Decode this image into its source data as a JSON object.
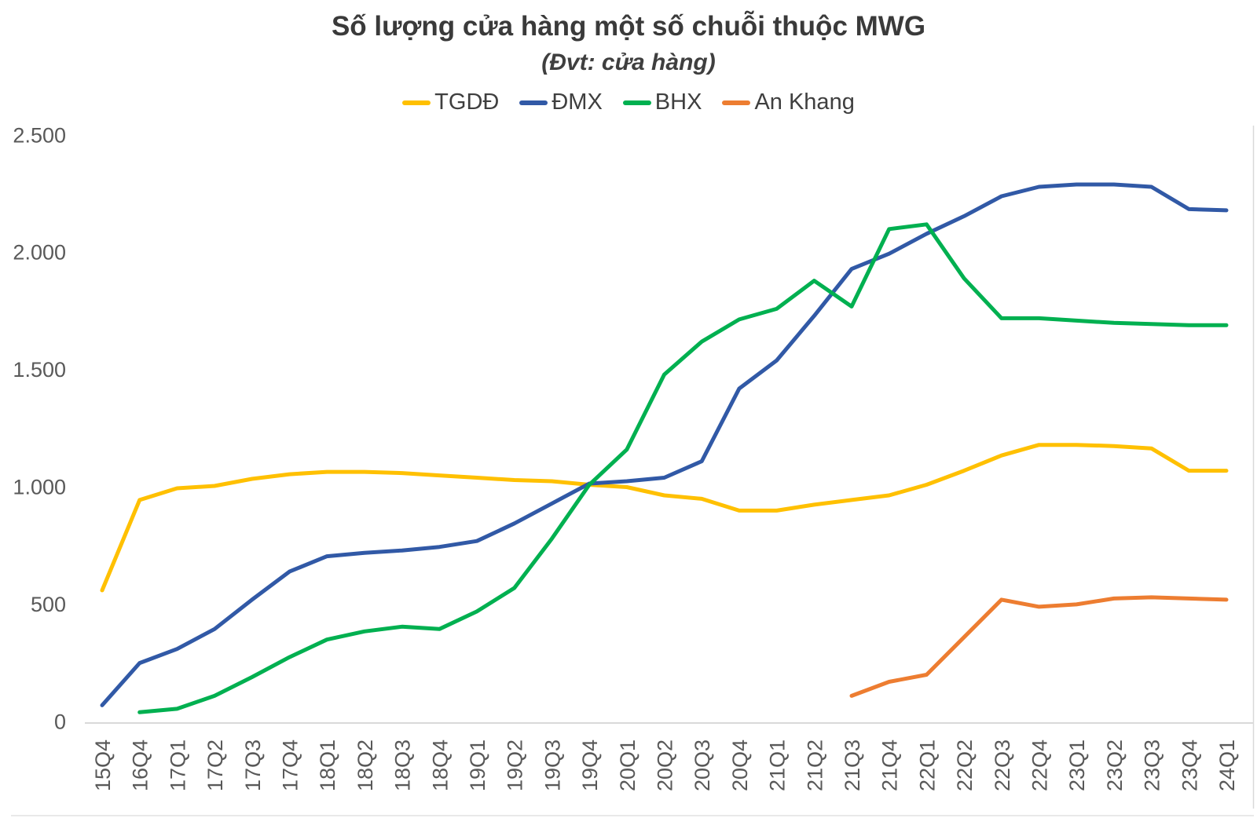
{
  "title": "Số lượng cửa hàng một số chuỗi thuộc MWG",
  "subtitle": "(Đvt: cửa hàng)",
  "colors": {
    "background": "#ffffff",
    "title_text": "#3a3a3a",
    "tick_text": "#595959",
    "axis_line": "#d9d9d9",
    "tgdd": "#FFC000",
    "dmx": "#3159A6",
    "bhx": "#00B050",
    "an_khang": "#ED7D31"
  },
  "chart_data": {
    "type": "line",
    "title": "Số lượng cửa hàng một số chuỗi thuộc MWG",
    "subtitle": "(Đvt: cửa hàng)",
    "legend_position": "top",
    "grid": false,
    "xlabel": "",
    "ylabel": "",
    "categories": [
      "15Q4",
      "16Q4",
      "17Q1",
      "17Q2",
      "17Q3",
      "17Q4",
      "18Q1",
      "18Q2",
      "18Q3",
      "18Q4",
      "19Q1",
      "19Q2",
      "19Q3",
      "19Q4",
      "20Q1",
      "20Q2",
      "20Q3",
      "20Q4",
      "21Q1",
      "21Q2",
      "21Q3",
      "21Q4",
      "22Q1",
      "22Q2",
      "22Q3",
      "22Q4",
      "23Q1",
      "23Q2",
      "23Q3",
      "23Q4",
      "24Q1"
    ],
    "y_axis": {
      "min": 0,
      "max": 2500,
      "step": 500,
      "tick_labels": [
        "0",
        "500",
        "1.000",
        "1.500",
        "2.000",
        "2.500"
      ]
    },
    "series": [
      {
        "name": "TGDĐ",
        "color": "#FFC000",
        "values": [
          560,
          945,
          995,
          1005,
          1035,
          1055,
          1065,
          1065,
          1060,
          1050,
          1040,
          1030,
          1025,
          1010,
          1000,
          965,
          950,
          900,
          900,
          925,
          945,
          965,
          1010,
          1070,
          1135,
          1180,
          1180,
          1175,
          1165,
          1070,
          1070
        ]
      },
      {
        "name": "ĐMX",
        "color": "#3159A6",
        "values": [
          70,
          250,
          310,
          395,
          520,
          640,
          705,
          720,
          730,
          745,
          770,
          845,
          930,
          1015,
          1025,
          1040,
          1110,
          1420,
          1540,
          1730,
          1930,
          1995,
          2080,
          2155,
          2240,
          2280,
          2290,
          2290,
          2280,
          2185,
          2180
        ]
      },
      {
        "name": "BHX",
        "color": "#00B050",
        "values": [
          null,
          40,
          55,
          110,
          190,
          275,
          350,
          385,
          405,
          395,
          470,
          570,
          780,
          1010,
          1160,
          1480,
          1620,
          1715,
          1760,
          1880,
          1770,
          2100,
          2120,
          1890,
          1720,
          1720,
          1710,
          1700,
          1695,
          1690,
          1690
        ]
      },
      {
        "name": "An Khang",
        "color": "#ED7D31",
        "values": [
          null,
          null,
          null,
          null,
          null,
          null,
          null,
          null,
          null,
          null,
          null,
          null,
          null,
          null,
          null,
          null,
          null,
          null,
          null,
          null,
          110,
          170,
          200,
          360,
          520,
          490,
          500,
          525,
          530,
          525,
          520
        ]
      }
    ]
  }
}
